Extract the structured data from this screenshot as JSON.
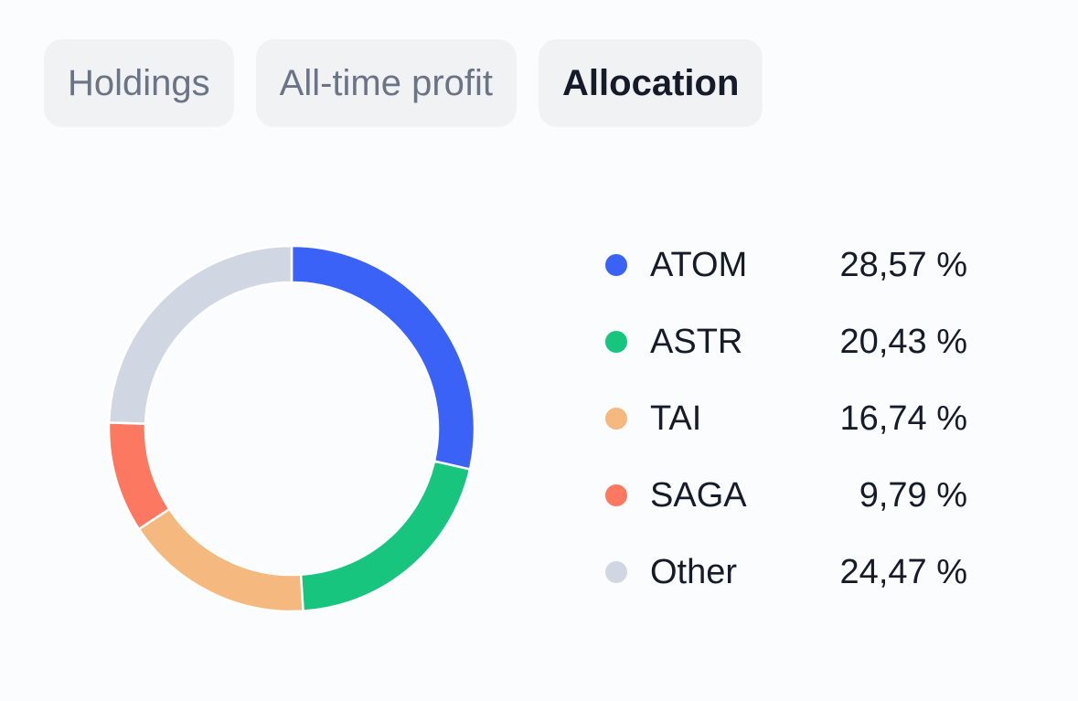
{
  "tabs": [
    {
      "label": "Holdings",
      "active": false
    },
    {
      "label": "All-time profit",
      "active": false
    },
    {
      "label": "Allocation",
      "active": true
    }
  ],
  "chart_data": {
    "type": "pie",
    "variant": "donut",
    "start_angle_deg": 0,
    "direction": "clockwise",
    "categories": [
      "ATOM",
      "ASTR",
      "TAI",
      "SAGA",
      "Other"
    ],
    "values": [
      28.57,
      20.43,
      16.74,
      9.79,
      24.47
    ],
    "value_labels": [
      "28,57 %",
      "20,43 %",
      "16,74 %",
      "9,79 %",
      "24,47 %"
    ],
    "colors": [
      "#3b62f6",
      "#17c57f",
      "#f5b87e",
      "#fd7860",
      "#d1d7e2"
    ],
    "legend_placement": "right"
  }
}
